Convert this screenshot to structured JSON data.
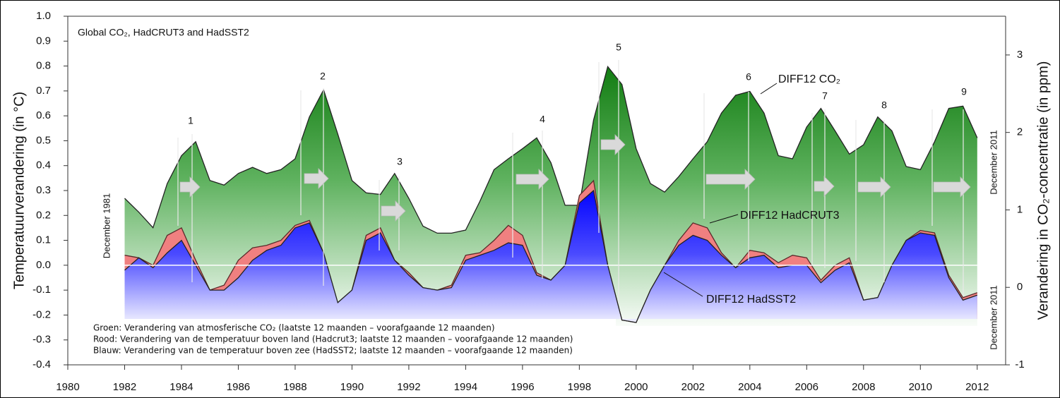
{
  "chart_data": {
    "type": "area",
    "title": "Global CO₂, HadCRUT3 and HadSST2",
    "ylabel": "Temperatuurverandering (in °C)",
    "y2label": "Verandering in CO₂-concentratie (in ppm)",
    "x": [
      1982,
      1982.5,
      1983,
      1983.5,
      1984,
      1984.5,
      1985,
      1985.5,
      1986,
      1986.5,
      1987,
      1987.5,
      1988,
      1988.5,
      1989,
      1989.5,
      1990,
      1990.5,
      1991,
      1991.5,
      1992,
      1992.5,
      1993,
      1993.5,
      1994,
      1994.5,
      1995,
      1995.5,
      1996,
      1996.5,
      1997,
      1997.5,
      1998,
      1998.5,
      1999,
      1999.5,
      2000,
      2000.5,
      2001,
      2001.5,
      2002,
      2002.5,
      2003,
      2003.5,
      2004,
      2004.5,
      2005,
      2005.5,
      2006,
      2006.5,
      2007,
      2007.5,
      2008,
      2008.5,
      2009,
      2009.5,
      2010,
      2010.5,
      2011,
      2011.5,
      2012
    ],
    "series": [
      {
        "name": "DIFF12 CO₂",
        "color": "#138a13",
        "axis": "y2",
        "values": [
          1.15,
          0.97,
          0.77,
          1.34,
          1.7,
          1.88,
          1.38,
          1.32,
          1.47,
          1.55,
          1.47,
          1.52,
          1.66,
          2.2,
          2.55,
          1.98,
          1.38,
          1.22,
          1.2,
          1.47,
          1.15,
          0.79,
          0.7,
          0.7,
          0.74,
          1.11,
          1.52,
          1.66,
          1.79,
          1.93,
          1.61,
          1.06,
          1.06,
          2.16,
          2.85,
          2.62,
          1.79,
          1.34,
          1.23,
          1.43,
          1.66,
          1.88,
          2.25,
          2.48,
          2.53,
          2.25,
          1.7,
          1.66,
          2.07,
          2.31,
          2.02,
          1.72,
          1.84,
          2.2,
          2.02,
          1.56,
          1.52,
          1.88,
          2.31,
          2.34,
          1.93
        ]
      },
      {
        "name": "DIFF12 HadCRUT3",
        "color": "#f08080",
        "values": [
          0.04,
          0.03,
          0.0,
          0.12,
          0.15,
          0.02,
          -0.1,
          -0.08,
          0.02,
          0.07,
          0.08,
          0.1,
          0.16,
          0.18,
          0.05,
          -0.17,
          -0.1,
          0.12,
          0.15,
          0.02,
          -0.03,
          -0.09,
          -0.1,
          -0.08,
          0.04,
          0.05,
          0.1,
          0.16,
          0.12,
          -0.03,
          -0.06,
          0.0,
          0.28,
          0.34,
          0.0,
          -0.22,
          -0.23,
          -0.1,
          0.0,
          0.1,
          0.17,
          0.15,
          0.05,
          -0.01,
          0.06,
          0.05,
          0.01,
          0.04,
          0.03,
          -0.06,
          0.0,
          0.03,
          -0.14,
          -0.13,
          0.0,
          0.1,
          0.14,
          0.13,
          -0.04,
          -0.13,
          -0.11
        ]
      },
      {
        "name": "DIFF12 HadSST2",
        "color": "#1a1aff",
        "values": [
          -0.02,
          0.03,
          -0.01,
          0.05,
          0.1,
          0.0,
          -0.1,
          -0.1,
          -0.05,
          0.02,
          0.06,
          0.08,
          0.15,
          0.17,
          0.05,
          -0.15,
          -0.1,
          0.1,
          0.13,
          0.02,
          -0.04,
          -0.09,
          -0.1,
          -0.09,
          0.02,
          0.04,
          0.06,
          0.09,
          0.08,
          -0.04,
          -0.06,
          0.0,
          0.25,
          0.3,
          0.0,
          -0.22,
          -0.23,
          -0.1,
          0.0,
          0.08,
          0.12,
          0.1,
          0.04,
          -0.01,
          0.03,
          0.04,
          -0.01,
          0.0,
          0.0,
          -0.07,
          -0.02,
          0.01,
          -0.14,
          -0.13,
          0.0,
          0.1,
          0.13,
          0.12,
          -0.05,
          -0.14,
          -0.12
        ]
      }
    ],
    "xlim": [
      1980,
      2013
    ],
    "xticks": [
      1980,
      1982,
      1984,
      1986,
      1988,
      1990,
      1992,
      1994,
      1996,
      1998,
      2000,
      2002,
      2004,
      2006,
      2008,
      2010,
      2012
    ],
    "ylim": [
      -0.4,
      1.0
    ],
    "yticks": [
      {
        "value": 1,
        "label": "1.0"
      },
      0.9,
      0.8,
      0.7,
      0.6,
      0.5,
      0.4,
      0.3,
      0.2,
      0.1,
      {
        "value": 0,
        "label": "0.0"
      },
      -0.1,
      -0.2,
      -0.3,
      -0.4
    ],
    "y2lim": [
      -1,
      3.5
    ],
    "y2ticks": [
      -1,
      0,
      1,
      2,
      3
    ],
    "annotations": [
      "1",
      "2",
      "3",
      "4",
      "5",
      "6",
      "7",
      "8",
      "9",
      "December 1981",
      "December 2011",
      "December 2011"
    ],
    "notes": [
      "Groen: Verandering van atmosferische CO₂ (laatste 12 maanden – voorafgaande 12 maanden)",
      "Rood: Verandering van de temperatuur boven land (Hadcrut3; laatste 12 maanden – voorafgaande 12 maanden)",
      "Blauw: Verandering van de temperatuur boven zee (HadSST2; laatste 12 maanden – voorafgaande 12 maanden)"
    ]
  }
}
